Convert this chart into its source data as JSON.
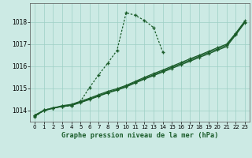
{
  "background_color": "#cceae4",
  "line_color": "#1a5c2a",
  "title": "Graphe pression niveau de la mer (hPa)",
  "xlim": [
    -0.5,
    23.5
  ],
  "ylim": [
    1013.5,
    1018.85
  ],
  "yticks": [
    1014,
    1015,
    1016,
    1017,
    1018
  ],
  "xticks": [
    0,
    1,
    2,
    3,
    4,
    5,
    6,
    7,
    8,
    9,
    10,
    11,
    12,
    13,
    14,
    15,
    16,
    17,
    18,
    19,
    20,
    21,
    22,
    23
  ],
  "series1_x": [
    0,
    1,
    2,
    3,
    4,
    5,
    6,
    7,
    8,
    9,
    10,
    11,
    12,
    13,
    14,
    15,
    16,
    17,
    18,
    19,
    20,
    21,
    22,
    23
  ],
  "series1_y": [
    1013.8,
    1014.0,
    1014.1,
    1014.2,
    1014.25,
    1014.38,
    1014.52,
    1014.68,
    1014.82,
    1014.95,
    1015.1,
    1015.28,
    1015.45,
    1015.62,
    1015.78,
    1015.95,
    1016.12,
    1016.28,
    1016.45,
    1016.62,
    1016.78,
    1016.95,
    1017.45,
    1018.0
  ],
  "series2_x": [
    0,
    1,
    2,
    3,
    4,
    5,
    6,
    7,
    8,
    9,
    10,
    11,
    12,
    13,
    14,
    15,
    16,
    17,
    18,
    19,
    20,
    21,
    22,
    23
  ],
  "series2_y": [
    1013.78,
    1014.02,
    1014.12,
    1014.22,
    1014.28,
    1014.42,
    1014.56,
    1014.72,
    1014.87,
    1014.99,
    1015.14,
    1015.32,
    1015.5,
    1015.67,
    1015.83,
    1016.0,
    1016.17,
    1016.34,
    1016.5,
    1016.67,
    1016.84,
    1017.0,
    1017.5,
    1018.05
  ],
  "series3_x": [
    0,
    1,
    2,
    3,
    4,
    5,
    6,
    7,
    8,
    9,
    10,
    11,
    12,
    13,
    14,
    15,
    16,
    17,
    18,
    19,
    20,
    21,
    22,
    23
  ],
  "series3_y": [
    1013.75,
    1014.0,
    1014.12,
    1014.18,
    1014.23,
    1014.36,
    1014.5,
    1014.65,
    1014.8,
    1014.92,
    1015.07,
    1015.25,
    1015.42,
    1015.58,
    1015.74,
    1015.9,
    1016.07,
    1016.23,
    1016.4,
    1016.56,
    1016.73,
    1016.89,
    1017.42,
    1017.97
  ],
  "series4_x": [
    0,
    1,
    2,
    3,
    4,
    5,
    6,
    7,
    8,
    9,
    10,
    11,
    12,
    13,
    14
  ],
  "series4_y": [
    1013.72,
    1014.02,
    1014.12,
    1014.18,
    1014.22,
    1014.42,
    1015.05,
    1015.62,
    1016.15,
    1016.72,
    1018.42,
    1018.3,
    1018.07,
    1017.75,
    1016.65
  ]
}
